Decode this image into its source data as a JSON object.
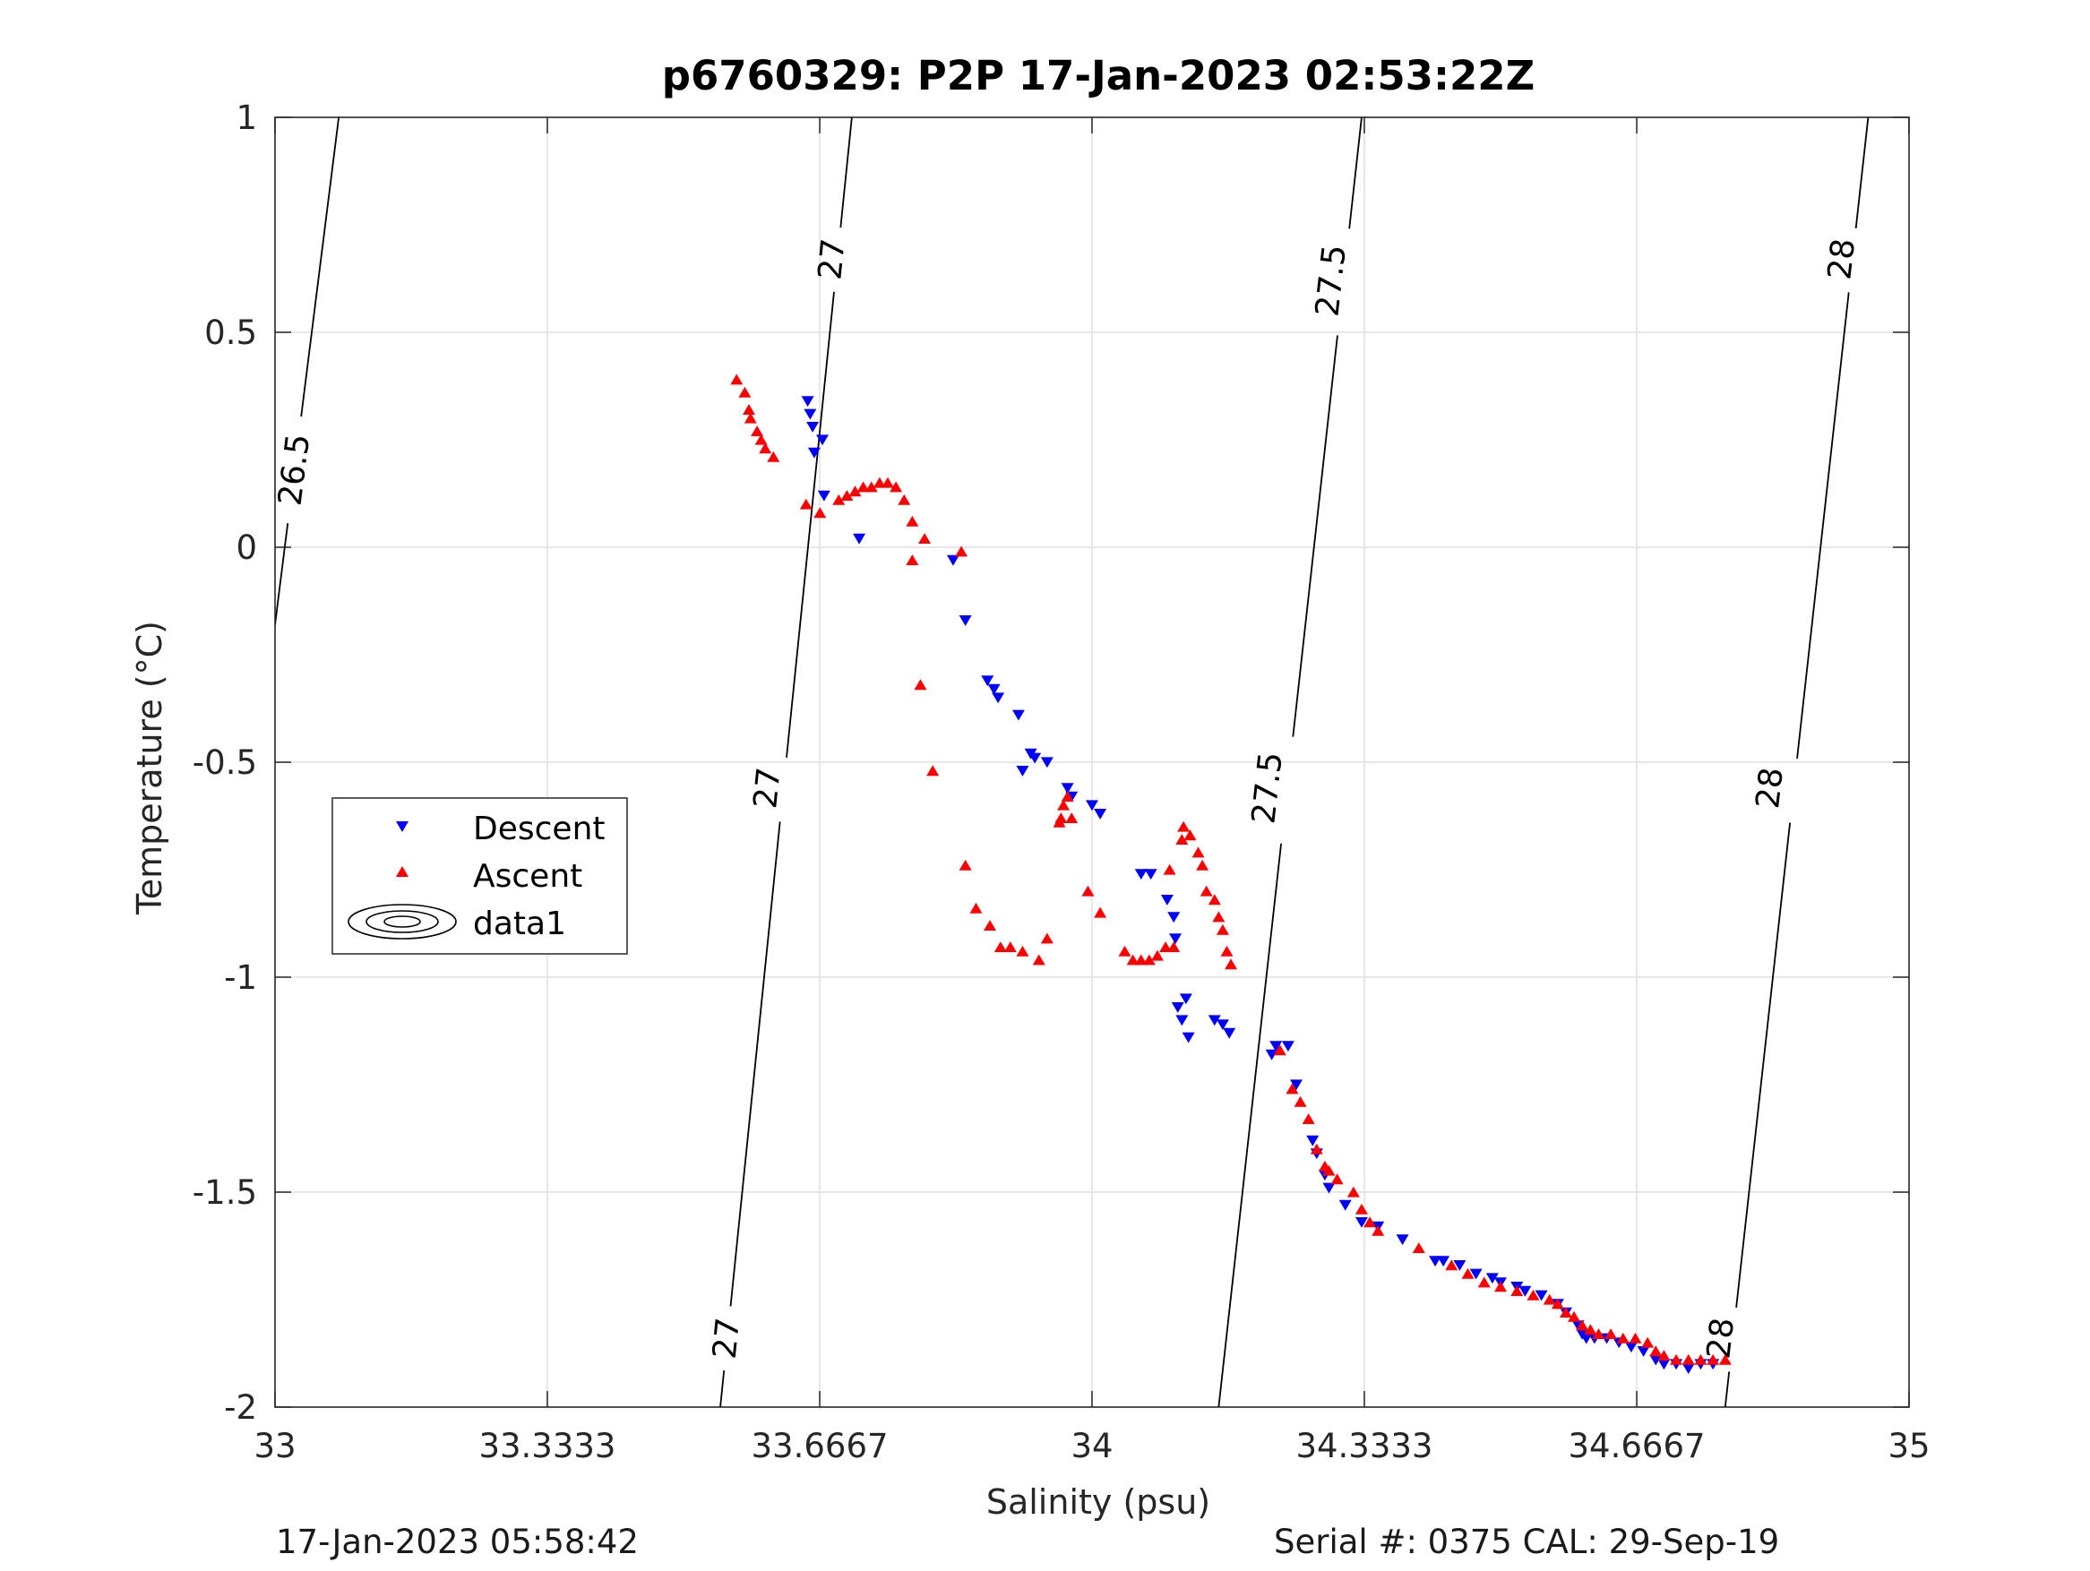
{
  "chart_data": {
    "type": "scatter",
    "title": "p6760329: P2P 17-Jan-2023 02:53:22Z",
    "xlabel": "Salinity (psu)",
    "ylabel": "Temperature (°C)",
    "xlim": [
      33,
      35
    ],
    "ylim": [
      -2,
      1
    ],
    "x_ticks": [
      33,
      33.3333,
      33.6667,
      34,
      34.3333,
      34.6667,
      35
    ],
    "x_tick_labels": [
      "33",
      "33.3333",
      "33.6667",
      "34",
      "34.3333",
      "34.6667",
      "35"
    ],
    "y_ticks": [
      -2,
      -1.5,
      -1,
      -0.5,
      0,
      0.5,
      1
    ],
    "y_tick_labels": [
      "-2",
      "-1.5",
      "-1",
      "-0.5",
      "0",
      "0.5",
      "1"
    ],
    "grid": true,
    "legend_position": "left",
    "legend": [
      "Descent",
      "Ascent",
      "data1"
    ],
    "series": [
      {
        "name": "Descent",
        "marker": "triangle-down",
        "color": "#0000ff",
        "points": [
          [
            33.652,
            0.34
          ],
          [
            33.655,
            0.31
          ],
          [
            33.658,
            0.28
          ],
          [
            33.66,
            0.22
          ],
          [
            33.67,
            0.25
          ],
          [
            33.672,
            0.12
          ],
          [
            33.715,
            0.02
          ],
          [
            33.83,
            -0.03
          ],
          [
            33.845,
            -0.17
          ],
          [
            33.872,
            -0.31
          ],
          [
            33.88,
            -0.33
          ],
          [
            33.885,
            -0.35
          ],
          [
            33.91,
            -0.39
          ],
          [
            33.915,
            -0.52
          ],
          [
            33.925,
            -0.48
          ],
          [
            33.93,
            -0.49
          ],
          [
            33.945,
            -0.5
          ],
          [
            33.97,
            -0.56
          ],
          [
            33.975,
            -0.58
          ],
          [
            34.0,
            -0.6
          ],
          [
            34.01,
            -0.62
          ],
          [
            34.06,
            -0.76
          ],
          [
            34.072,
            -0.76
          ],
          [
            34.092,
            -0.82
          ],
          [
            34.1,
            -0.86
          ],
          [
            34.102,
            -0.91
          ],
          [
            34.105,
            -1.07
          ],
          [
            34.11,
            -1.1
          ],
          [
            34.115,
            -1.05
          ],
          [
            34.118,
            -1.14
          ],
          [
            34.15,
            -1.1
          ],
          [
            34.16,
            -1.11
          ],
          [
            34.168,
            -1.13
          ],
          [
            34.22,
            -1.18
          ],
          [
            34.225,
            -1.16
          ],
          [
            34.24,
            -1.16
          ],
          [
            34.25,
            -1.25
          ],
          [
            34.27,
            -1.38
          ],
          [
            34.275,
            -1.41
          ],
          [
            34.285,
            -1.46
          ],
          [
            34.29,
            -1.49
          ],
          [
            34.31,
            -1.53
          ],
          [
            34.33,
            -1.57
          ],
          [
            34.35,
            -1.58
          ],
          [
            34.38,
            -1.61
          ],
          [
            34.42,
            -1.66
          ],
          [
            34.43,
            -1.66
          ],
          [
            34.45,
            -1.67
          ],
          [
            34.47,
            -1.69
          ],
          [
            34.49,
            -1.7
          ],
          [
            34.5,
            -1.71
          ],
          [
            34.52,
            -1.72
          ],
          [
            34.53,
            -1.73
          ],
          [
            34.55,
            -1.74
          ],
          [
            34.57,
            -1.76
          ],
          [
            34.58,
            -1.78
          ],
          [
            34.595,
            -1.81
          ],
          [
            34.6,
            -1.83
          ],
          [
            34.605,
            -1.84
          ],
          [
            34.615,
            -1.84
          ],
          [
            34.63,
            -1.84
          ],
          [
            34.645,
            -1.85
          ],
          [
            34.66,
            -1.86
          ],
          [
            34.675,
            -1.87
          ],
          [
            34.69,
            -1.89
          ],
          [
            34.7,
            -1.9
          ],
          [
            34.715,
            -1.9
          ],
          [
            34.73,
            -1.91
          ],
          [
            34.745,
            -1.9
          ],
          [
            34.76,
            -1.9
          ]
        ]
      },
      {
        "name": "Ascent",
        "marker": "triangle-up",
        "color": "#ff0000",
        "points": [
          [
            33.565,
            0.39
          ],
          [
            33.575,
            0.36
          ],
          [
            33.58,
            0.32
          ],
          [
            33.582,
            0.3
          ],
          [
            33.59,
            0.27
          ],
          [
            33.595,
            0.25
          ],
          [
            33.6,
            0.23
          ],
          [
            33.61,
            0.21
          ],
          [
            33.65,
            0.1
          ],
          [
            33.667,
            0.08
          ],
          [
            33.69,
            0.11
          ],
          [
            33.7,
            0.12
          ],
          [
            33.71,
            0.13
          ],
          [
            33.72,
            0.14
          ],
          [
            33.73,
            0.14
          ],
          [
            33.74,
            0.15
          ],
          [
            33.75,
            0.15
          ],
          [
            33.76,
            0.14
          ],
          [
            33.77,
            0.11
          ],
          [
            33.78,
            0.06
          ],
          [
            33.795,
            0.02
          ],
          [
            33.78,
            -0.03
          ],
          [
            33.79,
            -0.32
          ],
          [
            33.805,
            -0.52
          ],
          [
            33.84,
            -0.01
          ],
          [
            33.845,
            -0.74
          ],
          [
            33.858,
            -0.84
          ],
          [
            33.875,
            -0.88
          ],
          [
            33.888,
            -0.93
          ],
          [
            33.9,
            -0.93
          ],
          [
            33.915,
            -0.94
          ],
          [
            33.935,
            -0.96
          ],
          [
            33.945,
            -0.91
          ],
          [
            33.96,
            -0.64
          ],
          [
            33.962,
            -0.63
          ],
          [
            33.965,
            -0.6
          ],
          [
            33.97,
            -0.58
          ],
          [
            33.975,
            -0.63
          ],
          [
            33.995,
            -0.8
          ],
          [
            34.01,
            -0.85
          ],
          [
            34.04,
            -0.94
          ],
          [
            34.05,
            -0.96
          ],
          [
            34.06,
            -0.96
          ],
          [
            34.07,
            -0.96
          ],
          [
            34.08,
            -0.95
          ],
          [
            34.09,
            -0.93
          ],
          [
            34.1,
            -0.93
          ],
          [
            34.095,
            -0.75
          ],
          [
            34.11,
            -0.68
          ],
          [
            34.112,
            -0.65
          ],
          [
            34.12,
            -0.67
          ],
          [
            34.13,
            -0.71
          ],
          [
            34.135,
            -0.74
          ],
          [
            34.14,
            -0.8
          ],
          [
            34.15,
            -0.82
          ],
          [
            34.155,
            -0.86
          ],
          [
            34.16,
            -0.89
          ],
          [
            34.165,
            -0.94
          ],
          [
            34.17,
            -0.97
          ],
          [
            34.23,
            -1.17
          ],
          [
            34.245,
            -1.26
          ],
          [
            34.255,
            -1.29
          ],
          [
            34.265,
            -1.33
          ],
          [
            34.275,
            -1.4
          ],
          [
            34.285,
            -1.44
          ],
          [
            34.29,
            -1.45
          ],
          [
            34.3,
            -1.47
          ],
          [
            34.32,
            -1.5
          ],
          [
            34.33,
            -1.54
          ],
          [
            34.34,
            -1.57
          ],
          [
            34.35,
            -1.59
          ],
          [
            34.4,
            -1.63
          ],
          [
            34.44,
            -1.67
          ],
          [
            34.46,
            -1.69
          ],
          [
            34.48,
            -1.71
          ],
          [
            34.5,
            -1.72
          ],
          [
            34.52,
            -1.73
          ],
          [
            34.54,
            -1.74
          ],
          [
            34.56,
            -1.75
          ],
          [
            34.57,
            -1.76
          ],
          [
            34.58,
            -1.78
          ],
          [
            34.59,
            -1.79
          ],
          [
            34.6,
            -1.81
          ],
          [
            34.61,
            -1.82
          ],
          [
            34.62,
            -1.83
          ],
          [
            34.635,
            -1.83
          ],
          [
            34.65,
            -1.84
          ],
          [
            34.665,
            -1.84
          ],
          [
            34.68,
            -1.85
          ],
          [
            34.69,
            -1.87
          ],
          [
            34.7,
            -1.88
          ],
          [
            34.715,
            -1.89
          ],
          [
            34.73,
            -1.89
          ],
          [
            34.745,
            -1.89
          ],
          [
            34.76,
            -1.89
          ],
          [
            34.775,
            -1.89
          ]
        ]
      }
    ],
    "contours": [
      {
        "label": "26.5",
        "points": [
          [
            33.0,
            -0.18
          ],
          [
            33.078,
            1.0
          ]
        ],
        "label_positions": [
          [
            33.024,
            0.18
          ]
        ]
      },
      {
        "label": "27",
        "points": [
          [
            33.545,
            -2.0
          ],
          [
            33.706,
            1.0
          ]
        ],
        "label_positions": [
          [
            33.553,
            -1.84
          ],
          [
            33.603,
            -0.56
          ],
          [
            33.682,
            0.67
          ]
        ]
      },
      {
        "label": "27.5",
        "points": [
          [
            34.155,
            -2.0
          ],
          [
            34.33,
            1.0
          ]
        ],
        "label_positions": [
          [
            34.215,
            -0.56
          ],
          [
            34.293,
            0.62
          ]
        ]
      },
      {
        "label": "28",
        "points": [
          [
            34.775,
            -2.0
          ],
          [
            34.95,
            1.0
          ]
        ],
        "label_positions": [
          [
            34.77,
            -1.84
          ],
          [
            34.83,
            -0.56
          ],
          [
            34.918,
            0.67
          ]
        ]
      }
    ]
  },
  "footer": {
    "left_timestamp": "17-Jan-2023 05:58:42",
    "right_info": "Serial #: 0375  CAL: 29-Sep-19"
  },
  "colors": {
    "descent": "#0000ff",
    "ascent": "#ff0000",
    "grid": "#e0e0e0",
    "axis": "#262626"
  }
}
